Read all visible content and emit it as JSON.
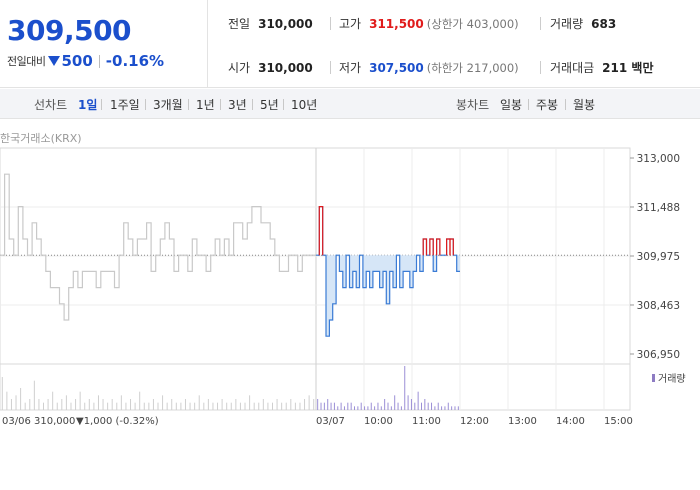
{
  "header": {
    "price": "309,500",
    "change_label": "전일대비",
    "change_amount": "500",
    "change_pct": "-0.16%",
    "stats": {
      "prev_close": {
        "label": "전일",
        "value": "310,000"
      },
      "high": {
        "label": "고가",
        "value": "311,500",
        "sub": "(상한가 403,000)"
      },
      "volume": {
        "label": "거래량",
        "value": "683"
      },
      "open": {
        "label": "시가",
        "value": "310,000"
      },
      "low": {
        "label": "저가",
        "value": "307,500",
        "sub": "(하한가 217,000)"
      },
      "turnover": {
        "label": "거래대금",
        "value": "211 백만"
      }
    }
  },
  "toolbar": {
    "line_label": "선차트",
    "line_ranges": [
      "1일",
      "1주일",
      "3개월",
      "1년",
      "3년",
      "5년",
      "10년"
    ],
    "active_range": "1일",
    "candle_label": "봉차트",
    "candle_ranges": [
      "일봉",
      "주봉",
      "월봉"
    ]
  },
  "chart_meta": {
    "source": "한국거래소(KRX)",
    "prev_date": "03/06",
    "prev_summary_price": "310,000",
    "prev_summary_change": "▼1,000 (-0.32%)",
    "today_date": "03/07",
    "volume_legend": "거래량"
  },
  "colors": {
    "up": "#e01b1b",
    "down": "#1b4fcc",
    "line_today": "#3a7bd5",
    "fill_today": "#d6e6f7",
    "line_prev": "#c9c9c9"
  },
  "chart_data": {
    "type": "line",
    "ylim": [
      306950,
      313000
    ],
    "y_ticks": [
      "313,000",
      "311,488",
      "309,975",
      "308,463",
      "306,950"
    ],
    "y_tick_values": [
      313000,
      311488,
      309975,
      308463,
      306950
    ],
    "x_time_ticks": [
      "10:00",
      "11:00",
      "12:00",
      "13:00",
      "14:00",
      "15:00"
    ],
    "session": {
      "start": "09:00",
      "end": "15:30"
    },
    "reference_price": 310000,
    "prev_day": {
      "date": "03/06",
      "prices": [
        310000,
        312500,
        310500,
        310000,
        311500,
        310500,
        310000,
        311000,
        310500,
        310000,
        309500,
        309000,
        309000,
        308500,
        308000,
        309000,
        309500,
        309000,
        309500,
        309500,
        309500,
        309000,
        309500,
        309500,
        309500,
        309000,
        310000,
        311000,
        310500,
        310000,
        310500,
        310500,
        311000,
        309500,
        310000,
        310500,
        311000,
        310500,
        309500,
        310000,
        310000,
        309500,
        310500,
        310000,
        310000,
        309500,
        310000,
        310500,
        310000,
        310500,
        310000,
        311000,
        311000,
        310500,
        311000,
        311500,
        311500,
        311000,
        311000,
        310500,
        310000,
        309500,
        309500,
        310000,
        310000,
        309500,
        310000,
        310000,
        310000
      ],
      "volume": [
        9,
        5,
        3,
        4,
        6,
        2,
        3,
        8,
        3,
        2,
        3,
        5,
        2,
        3,
        4,
        2,
        3,
        5,
        2,
        3,
        2,
        4,
        3,
        2,
        3,
        2,
        4,
        2,
        3,
        2,
        5,
        2,
        2,
        3,
        2,
        4,
        2,
        3,
        2,
        2,
        3,
        2,
        2,
        4,
        2,
        3,
        2,
        2,
        3,
        2,
        2,
        3,
        2,
        2,
        4,
        2,
        2,
        3,
        2,
        2,
        3,
        2,
        2,
        3,
        2,
        2,
        3,
        4,
        3
      ]
    },
    "today": {
      "date": "03/07",
      "prices": [
        310000,
        311500,
        310000,
        307500,
        308000,
        308500,
        310000,
        309500,
        309000,
        310000,
        309000,
        309500,
        309000,
        310000,
        309000,
        309500,
        309000,
        309500,
        309500,
        309000,
        309500,
        308500,
        309500,
        309000,
        310000,
        309000,
        309500,
        309500,
        309000,
        309500,
        310000,
        309500,
        310500,
        310000,
        310500,
        309500,
        310500,
        310000,
        310000,
        310500,
        310500,
        310000,
        309500
      ],
      "volume": [
        3,
        2,
        2,
        3,
        2,
        2,
        1,
        2,
        1,
        2,
        2,
        1,
        1,
        2,
        1,
        1,
        2,
        1,
        2,
        1,
        3,
        2,
        1,
        4,
        2,
        1,
        12,
        4,
        3,
        2,
        5,
        2,
        3,
        2,
        2,
        1,
        2,
        1,
        1,
        2,
        1,
        1,
        1
      ]
    }
  }
}
